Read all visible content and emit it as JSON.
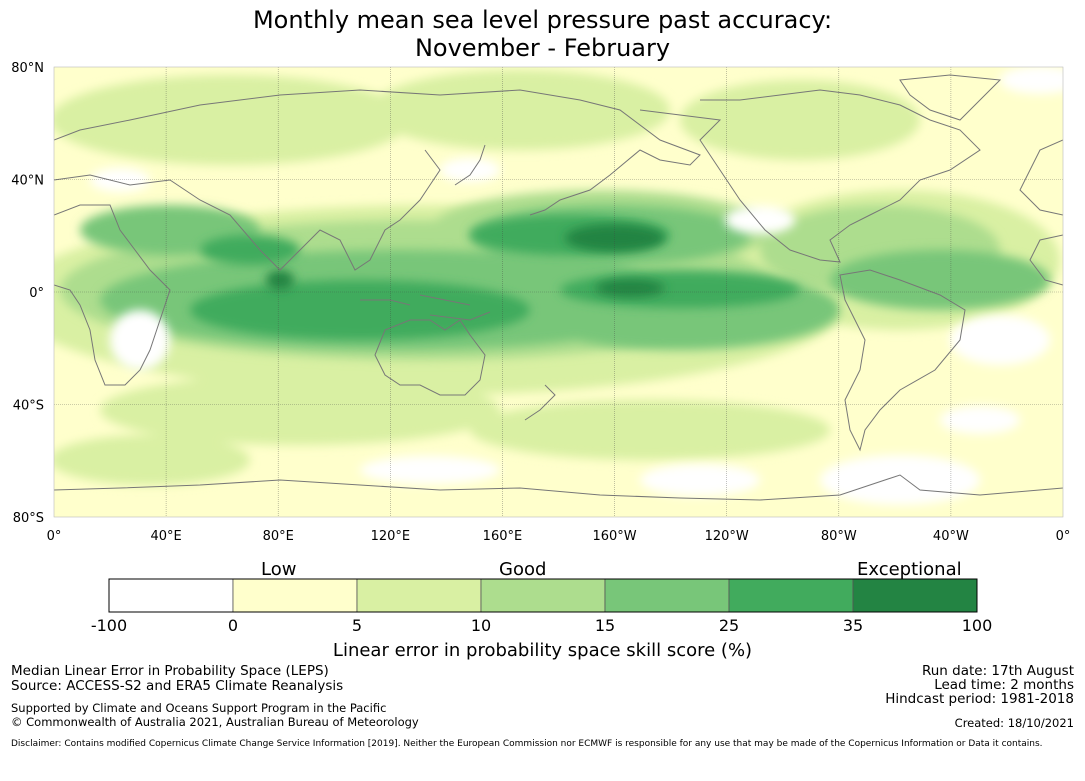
{
  "title": {
    "line1": "Monthly mean sea level pressure past accuracy:",
    "line2": "November - February"
  },
  "map": {
    "lat_labels": [
      "80°N",
      "40°N",
      "0°",
      "40°S",
      "80°S"
    ],
    "lon_labels": [
      "0°",
      "40°E",
      "80°E",
      "120°E",
      "160°E",
      "160°W",
      "120°W",
      "80°W",
      "40°W",
      "0°"
    ],
    "lat_range": [
      -80,
      80
    ],
    "lon_center": 180,
    "grid": true,
    "coastline_color": "#777777"
  },
  "colorbar": {
    "category_labels": [
      "Low",
      "Good",
      "Exceptional"
    ],
    "ticks": [
      "-100",
      "0",
      "5",
      "10",
      "15",
      "25",
      "35",
      "100"
    ],
    "colors": [
      "#ffffff",
      "#ffffcc",
      "#d9f0a3",
      "#addd8e",
      "#78c679",
      "#41ab5d",
      "#238443"
    ],
    "title": "Linear error in probability space skill score (%)"
  },
  "footer": {
    "left": {
      "line1": "Median Linear Error in Probability Space (LEPS)",
      "line2": "Source: ACCESS-S2 and ERA5 Climate Reanalysis",
      "line3": "Supported by Climate and Oceans Support Program in the Pacific",
      "line4": "© Commonwealth of Australia 2021, Australian Bureau of Meteorology"
    },
    "right": {
      "run_date": "Run date: 17th August",
      "lead_time": "Lead time: 2 months",
      "hindcast": "Hindcast period: 1981-2018",
      "created": "Created: 18/10/2021"
    },
    "disclaimer": "Disclaimer: Contains modified Copernicus Climate Change Service Information [2019]. Neither the European Commission nor ECMWF is responsible for any use that may be made of the Copernicus Information or Data it contains."
  }
}
